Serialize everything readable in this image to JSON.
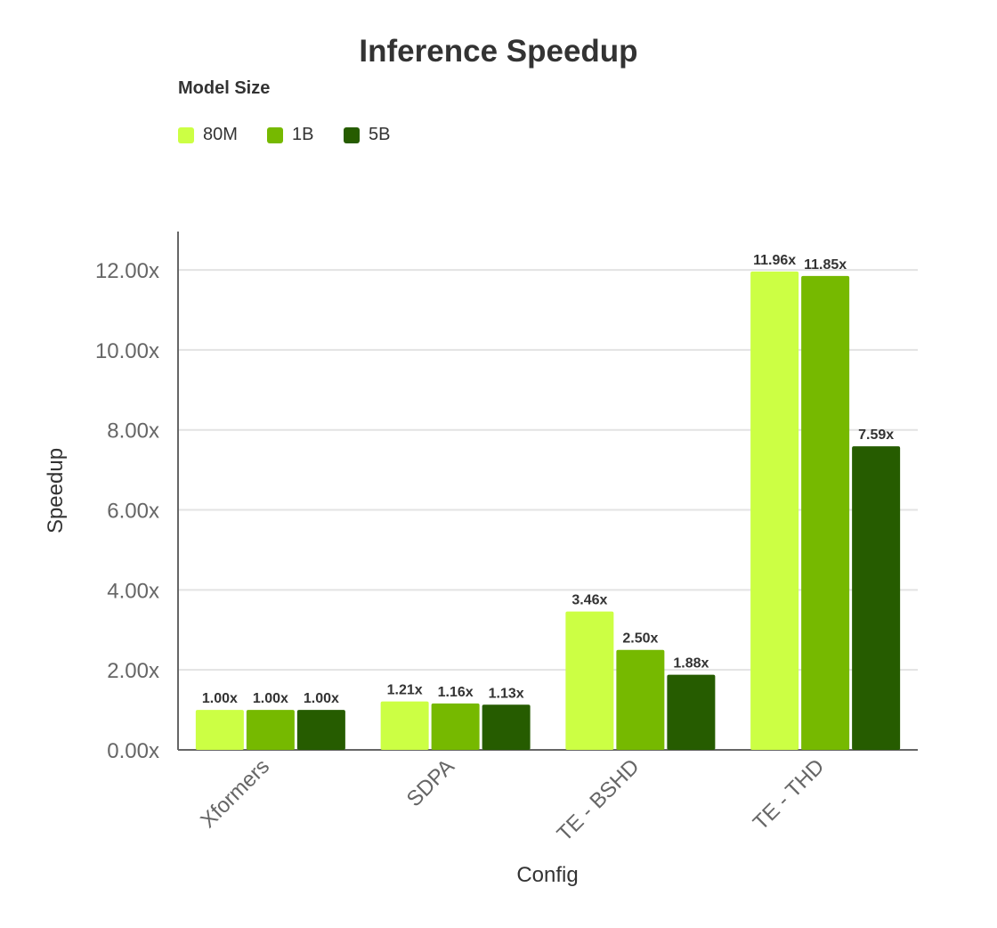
{
  "chart_data": {
    "type": "bar",
    "title": "Inference Speedup",
    "legend_title": "Model Size",
    "legend_position": "top-left",
    "xlabel": "Config",
    "ylabel": "Speedup",
    "categories": [
      "Xformers",
      "SDPA",
      "TE - BSHD",
      "TE - THD"
    ],
    "series": [
      {
        "name": "80M",
        "color": "#ccff44",
        "values": [
          1.0,
          1.21,
          3.46,
          11.96
        ],
        "labels": [
          "1.00x",
          "1.21x",
          "3.46x",
          "11.96x"
        ]
      },
      {
        "name": "1B",
        "color": "#76b900",
        "values": [
          1.0,
          1.16,
          2.5,
          11.85
        ],
        "labels": [
          "1.00x",
          "1.16x",
          "2.50x",
          "11.85x"
        ]
      },
      {
        "name": "5B",
        "color": "#265c00",
        "values": [
          1.0,
          1.13,
          1.88,
          7.59
        ],
        "labels": [
          "1.00x",
          "1.13x",
          "1.88x",
          "7.59x"
        ]
      }
    ],
    "yticks": [
      "0.00x",
      "2.00x",
      "4.00x",
      "6.00x",
      "8.00x",
      "10.00x",
      "12.00x"
    ],
    "ytick_values": [
      0,
      2,
      4,
      6,
      8,
      10,
      12
    ],
    "ylim": [
      0,
      12.96
    ],
    "grid": true
  }
}
